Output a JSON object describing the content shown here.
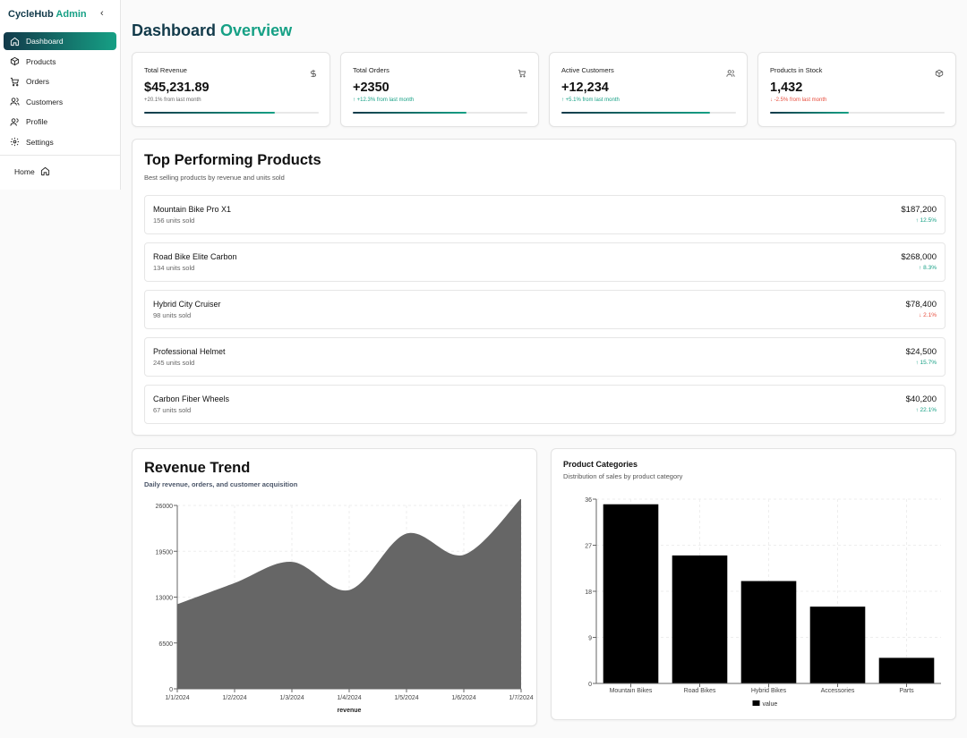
{
  "app": {
    "brand_name": "CycleHub",
    "brand_suffix": "Admin",
    "collapse_icon": "chevron-left-icon"
  },
  "sidebar": {
    "items": [
      {
        "label": "Dashboard",
        "icon": "home-icon",
        "active": true
      },
      {
        "label": "Products",
        "icon": "box-icon",
        "active": false
      },
      {
        "label": "Orders",
        "icon": "cart-icon",
        "active": false
      },
      {
        "label": "Customers",
        "icon": "users-icon",
        "active": false
      },
      {
        "label": "Profile",
        "icon": "user-icon",
        "active": false
      },
      {
        "label": "Settings",
        "icon": "gear-icon",
        "active": false
      }
    ],
    "home_label": "Home"
  },
  "page": {
    "title_part1": "Dashboard",
    "title_part2": "Overview"
  },
  "stats": [
    {
      "label": "Total Revenue",
      "value": "$45,231.89",
      "delta": "+20.1% from last month",
      "trend": "neutral",
      "icon": "dollar-icon",
      "progress": 0.75
    },
    {
      "label": "Total Orders",
      "value": "+2350",
      "delta": "↑ +12.3% from last month",
      "trend": "up",
      "icon": "cart-icon",
      "progress": 0.65
    },
    {
      "label": "Active Customers",
      "value": "+12,234",
      "delta": "↑ +5.1% from last month",
      "trend": "up",
      "icon": "users-icon",
      "progress": 0.85
    },
    {
      "label": "Products in Stock",
      "value": "1,432",
      "delta": "↓ -2.5% from last month",
      "trend": "down",
      "icon": "box-icon",
      "progress": 0.45
    }
  ],
  "top_products": {
    "title": "Top Performing Products",
    "subtitle": "Best selling products by revenue and units sold",
    "items": [
      {
        "name": "Mountain Bike Pro X1",
        "units": "156 units sold",
        "revenue": "$187,200",
        "change": "↑ 12.5%",
        "trend": "up"
      },
      {
        "name": "Road Bike Elite Carbon",
        "units": "134 units sold",
        "revenue": "$268,000",
        "change": "↑ 8.3%",
        "trend": "up"
      },
      {
        "name": "Hybrid City Cruiser",
        "units": "98 units sold",
        "revenue": "$78,400",
        "change": "↓ 2.1%",
        "trend": "down"
      },
      {
        "name": "Professional Helmet",
        "units": "245 units sold",
        "revenue": "$24,500",
        "change": "↑ 15.7%",
        "trend": "up"
      },
      {
        "name": "Carbon Fiber Wheels",
        "units": "67 units sold",
        "revenue": "$40,200",
        "change": "↑ 22.1%",
        "trend": "up"
      }
    ]
  },
  "revenue_trend": {
    "title": "Revenue Trend",
    "subtitle": "Daily revenue, orders, and customer acquisition"
  },
  "product_categories": {
    "title": "Product Categories",
    "subtitle": "Distribution of sales by product category"
  },
  "colors": {
    "brand_dark": "#123a4a",
    "brand_accent": "#16a085",
    "up": "#16a085",
    "down": "#e74c3c",
    "area_fill": "#666666",
    "bar_fill": "#000000"
  },
  "chart_data": [
    {
      "type": "area",
      "title": "",
      "xlabel": "revenue",
      "ylabel": "",
      "x": [
        "1/1/2024",
        "1/2/2024",
        "1/3/2024",
        "1/4/2024",
        "1/5/2024",
        "1/6/2024",
        "1/7/2024"
      ],
      "series": [
        {
          "name": "revenue",
          "values": [
            12000,
            15000,
            18000,
            14000,
            22000,
            19000,
            27000
          ]
        }
      ],
      "yticks": [
        0,
        6500,
        13000,
        19500,
        26000
      ],
      "ylim": [
        0,
        26000
      ],
      "grid": true
    },
    {
      "type": "bar",
      "title": "",
      "categories": [
        "Mountain Bikes",
        "Road Bikes",
        "Hybrid Bikes",
        "Accessories",
        "Parts"
      ],
      "series": [
        {
          "name": "value",
          "values": [
            35,
            25,
            20,
            15,
            5
          ]
        }
      ],
      "yticks": [
        0,
        9,
        18,
        27,
        36
      ],
      "ylim": [
        0,
        36
      ],
      "grid": true,
      "legend": "bottom"
    }
  ]
}
